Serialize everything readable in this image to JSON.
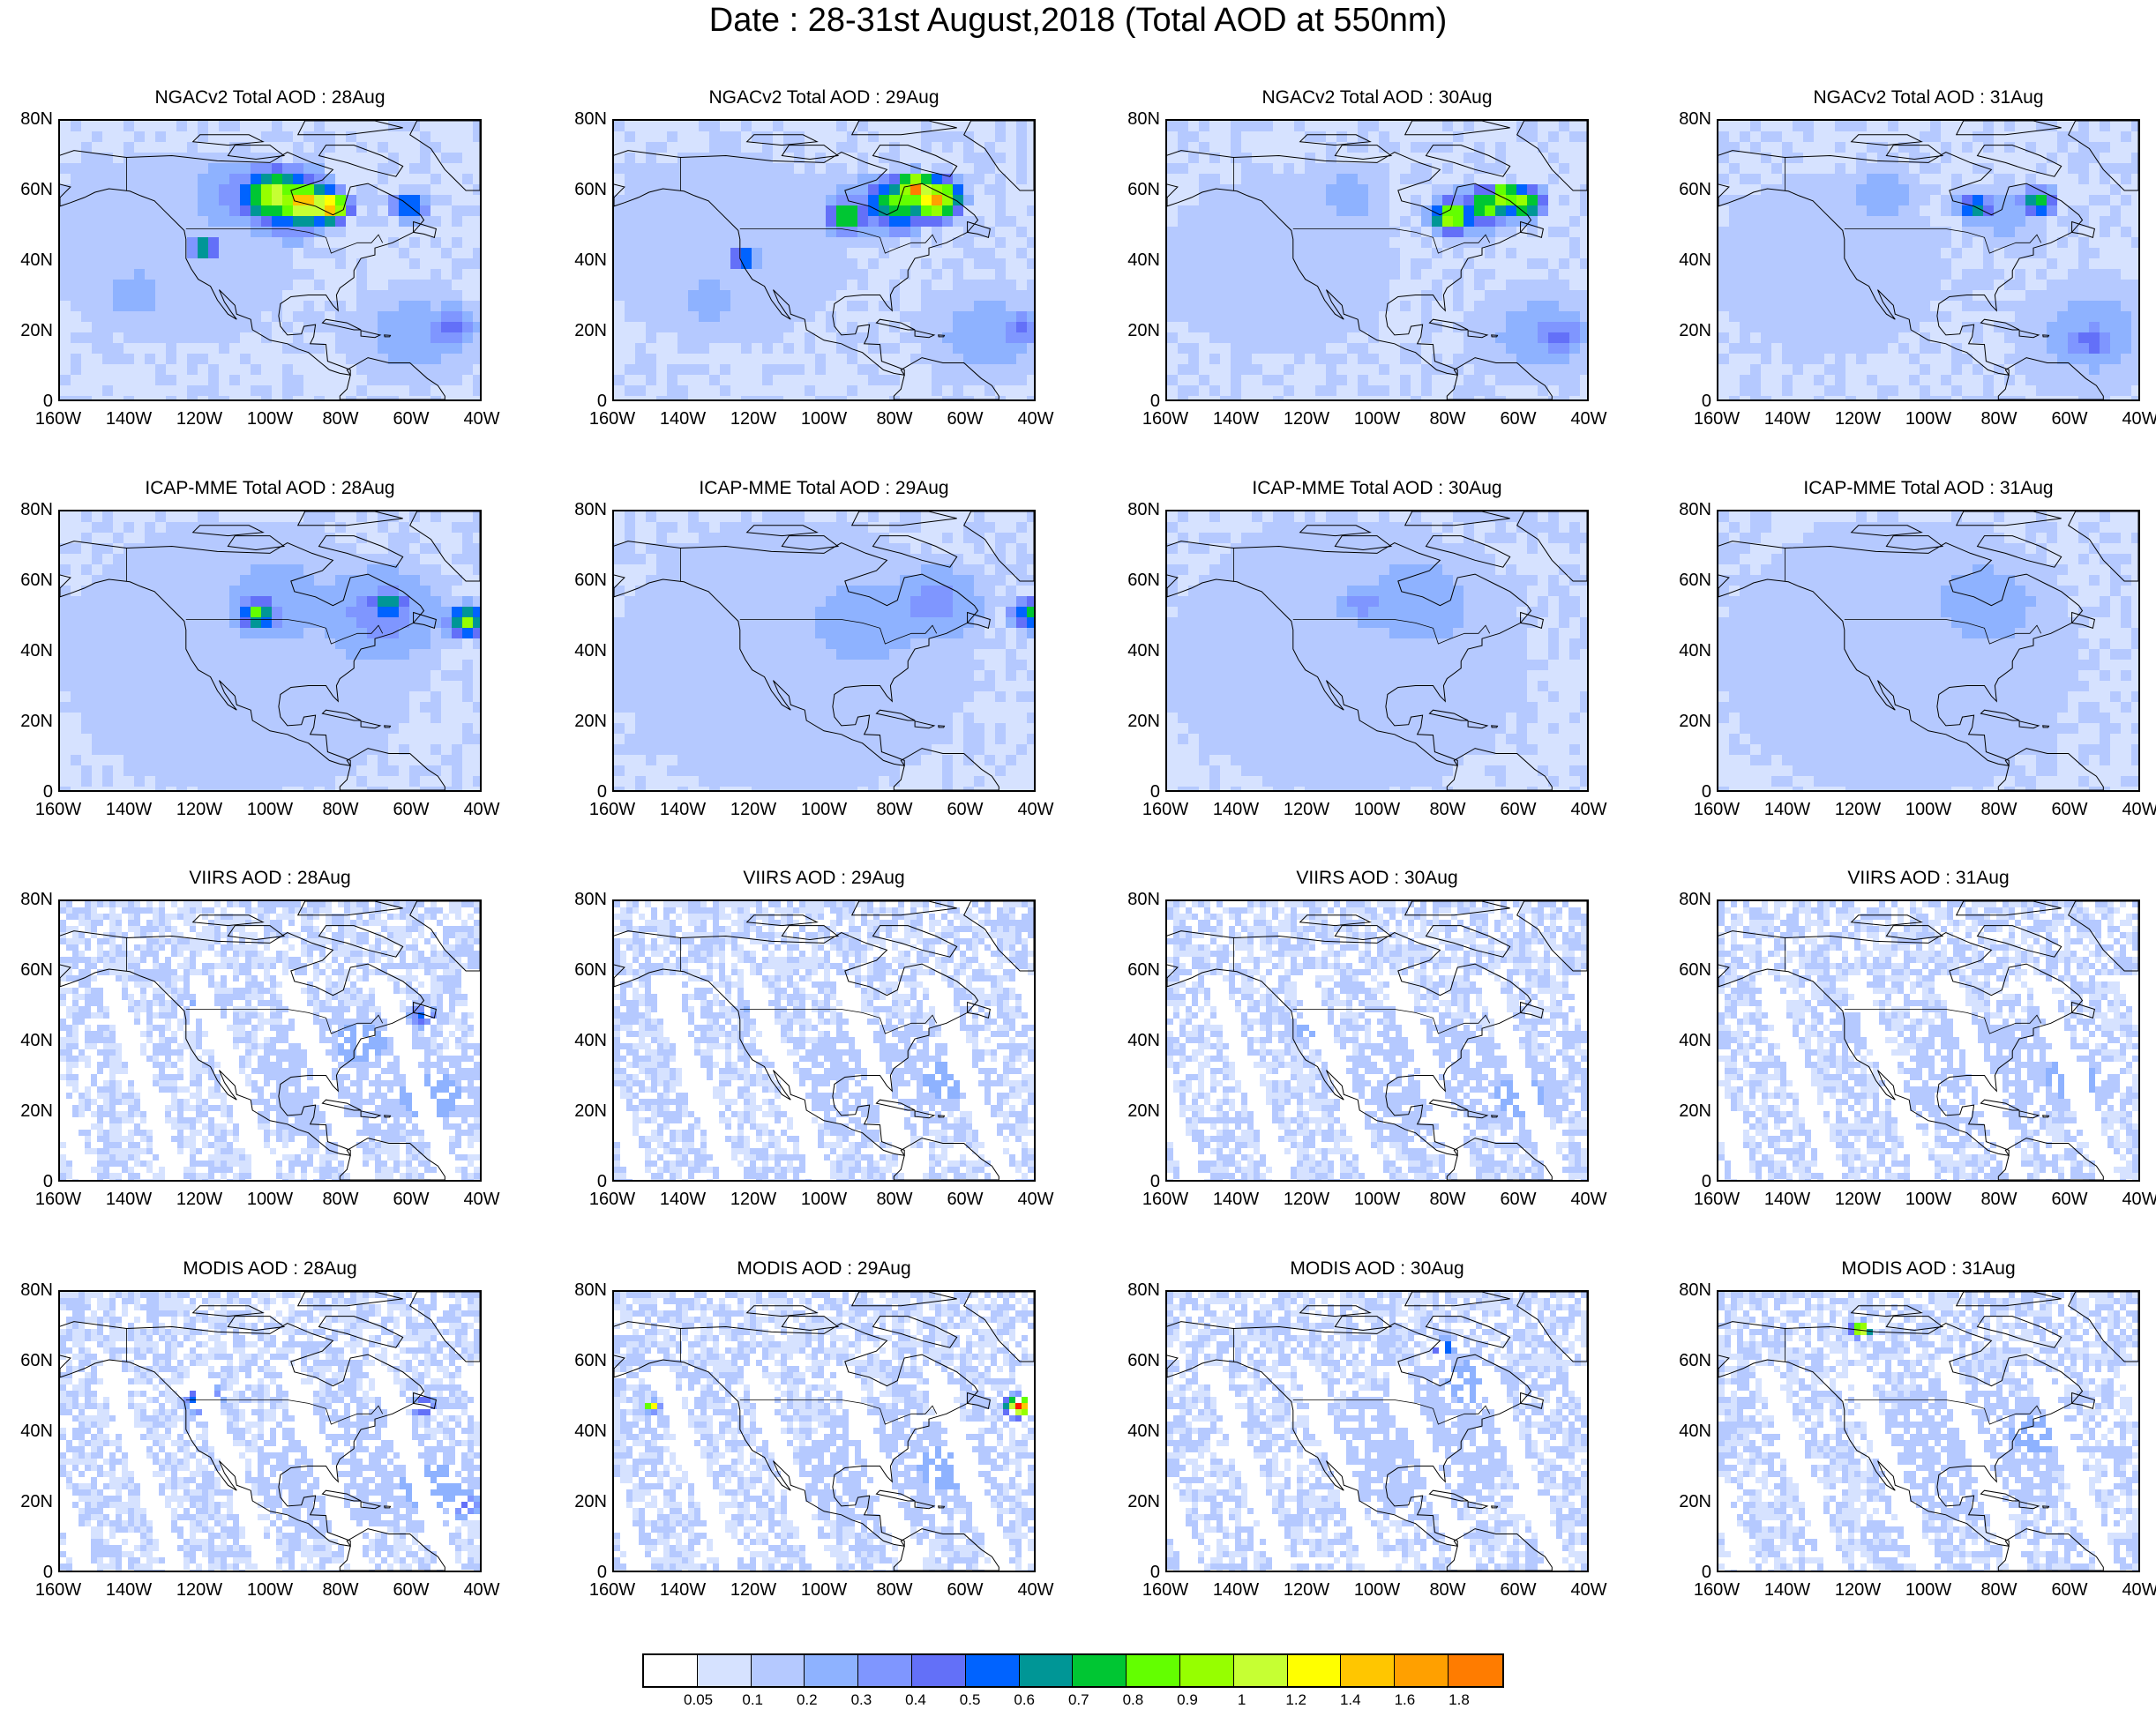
{
  "title": "Date : 28-31st August,2018 (Total AOD at 550nm)",
  "lat_ticks": [
    "80N",
    "60N",
    "40N",
    "20N",
    "0"
  ],
  "lon_ticks": [
    "160W",
    "140W",
    "120W",
    "100W",
    "80W",
    "60W",
    "40W"
  ],
  "rows": [
    {
      "product": "NGACv2",
      "panels": [
        "NGACv2 Total AOD : 28Aug",
        "NGACv2 Total AOD : 29Aug",
        "NGACv2 Total AOD : 30Aug",
        "NGACv2 Total AOD : 31Aug"
      ]
    },
    {
      "product": "ICAP-MME",
      "panels": [
        "ICAP-MME Total AOD : 28Aug",
        "ICAP-MME Total AOD : 29Aug",
        "ICAP-MME Total AOD : 30Aug",
        "ICAP-MME Total AOD : 31Aug"
      ]
    },
    {
      "product": "VIIRS",
      "panels": [
        "VIIRS AOD : 28Aug",
        "VIIRS AOD : 29Aug",
        "VIIRS AOD : 30Aug",
        "VIIRS AOD : 31Aug"
      ]
    },
    {
      "product": "MODIS",
      "panels": [
        "MODIS AOD : 28Aug",
        "MODIS AOD : 29Aug",
        "MODIS AOD : 30Aug",
        "MODIS AOD : 31Aug"
      ]
    }
  ],
  "colorbar": {
    "labels": [
      "0.05",
      "0.1",
      "0.2",
      "0.3",
      "0.4",
      "0.5",
      "0.6",
      "0.7",
      "0.8",
      "0.9",
      "1",
      "1.2",
      "1.4",
      "1.6",
      "1.8"
    ],
    "colors": [
      "#ffffff",
      "#d6e2ff",
      "#b5c9ff",
      "#8eb2ff",
      "#7f96ff",
      "#6370f8",
      "#0063ff",
      "#009696",
      "#00c633",
      "#63ff00",
      "#96ff00",
      "#c6ff33",
      "#ffff00",
      "#ffc600",
      "#ffa000",
      "#ff7c00",
      "#ff1900"
    ]
  }
}
